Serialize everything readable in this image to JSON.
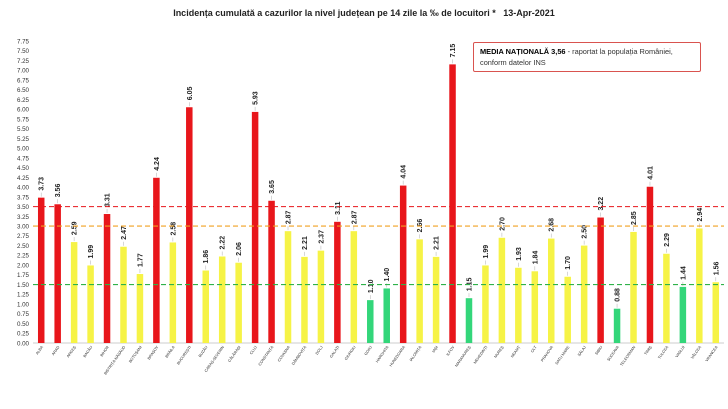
{
  "title": "Incidența cumulată a cazurilor la nivel județean pe 14 zile la ‰ de locuitori *   13-Apr-2021",
  "annotation": {
    "bold": "MEDIA NAȚIONALĂ  3,56",
    "text1": " - raportat la populația României,",
    "text2": "conform datelor INS"
  },
  "colors": {
    "red": "#e8161b",
    "yellow": "#f6f346",
    "green": "#33d67a",
    "line_red": "#e8161b",
    "line_orange": "#f0a020",
    "line_green": "#2fb24a"
  },
  "chart_data": {
    "type": "bar",
    "title": "Incidența cumulată a cazurilor la nivel județean pe 14 zile la ‰ de locuitori *   13-Apr-2021",
    "ylim": [
      0,
      7.75
    ],
    "yticks": [
      "0.00",
      "0.25",
      "0.50",
      "0.75",
      "1.00",
      "1.25",
      "1.50",
      "1.75",
      "2.00",
      "2.25",
      "2.50",
      "2.75",
      "3.00",
      "3.25",
      "3.50",
      "3.75",
      "4.00",
      "4.25",
      "4.50",
      "4.75",
      "5.00",
      "5.25",
      "5.50",
      "5.75",
      "6.00",
      "6.25",
      "6.50",
      "6.75",
      "7.00",
      "7.25",
      "7.50",
      "7.75"
    ],
    "categories": [
      "ALBA",
      "ARAD",
      "ARGEȘ",
      "BACĂU",
      "BIHOR",
      "BISTRIȚA-NĂSĂUD",
      "BOTOȘANI",
      "BRAȘOV",
      "BRĂILA",
      "BUCUREȘTI",
      "BUZĂU",
      "CARAȘ-SEVERIN",
      "CĂLĂRAȘI",
      "CLUJ",
      "CONSTANȚA",
      "COVASNA",
      "DÂMBOVIȚA",
      "DOLJ",
      "GALAȚI",
      "GIURGIU",
      "GORJ",
      "HARGHITA",
      "HUNEDOARA",
      "IALOMIȚA",
      "IAȘI",
      "ILFOV",
      "MARAMUREȘ",
      "MEHEDINȚI",
      "MUREȘ",
      "NEAMȚ",
      "OLT",
      "PRAHOVA",
      "SATU MARE",
      "SĂLAJ",
      "SIBIU",
      "SUCEAVA",
      "TELEORMAN",
      "TIMIȘ",
      "TULCEA",
      "VASLUI",
      "VÂLCEA",
      "VRANCEA"
    ],
    "values": [
      3.73,
      3.56,
      2.59,
      1.99,
      3.31,
      2.47,
      1.77,
      4.24,
      2.58,
      6.05,
      1.86,
      2.22,
      2.06,
      5.93,
      3.65,
      2.87,
      2.21,
      2.37,
      3.11,
      2.87,
      1.1,
      1.4,
      4.04,
      2.66,
      2.21,
      7.15,
      1.15,
      1.99,
      2.7,
      1.93,
      1.84,
      2.68,
      1.7,
      2.5,
      3.22,
      0.88,
      2.85,
      4.01,
      2.29,
      1.44,
      2.94,
      1.56
    ],
    "value_labels": [
      "3.73",
      "3.56",
      "2.59",
      "1.99",
      "3.31",
      "2.47",
      "1.77",
      "4.24",
      "2.58",
      "6.05",
      "1.86",
      "2.22",
      "2.06",
      "5.93",
      "3.65",
      "2.87",
      "2.21",
      "2.37",
      "3.11",
      "2.87",
      "1.10",
      "1.40",
      "4.04",
      "2.66",
      "2.21",
      "7.15",
      "1.15",
      "1.99",
      "2.70",
      "1.93",
      "1.84",
      "2.68",
      "1.70",
      "2.50",
      "3.22",
      "0.88",
      "2.85",
      "4.01",
      "2.29",
      "1.44",
      "2.94",
      "1.56"
    ],
    "bar_colors": [
      "red",
      "red",
      "yellow",
      "yellow",
      "red",
      "yellow",
      "yellow",
      "red",
      "yellow",
      "red",
      "yellow",
      "yellow",
      "yellow",
      "red",
      "red",
      "yellow",
      "yellow",
      "yellow",
      "red",
      "yellow",
      "green",
      "green",
      "red",
      "yellow",
      "yellow",
      "red",
      "green",
      "yellow",
      "yellow",
      "yellow",
      "yellow",
      "yellow",
      "yellow",
      "yellow",
      "red",
      "green",
      "yellow",
      "red",
      "yellow",
      "green",
      "yellow",
      "yellow"
    ],
    "reference_lines": [
      {
        "value": 3.5,
        "color": "line_red"
      },
      {
        "value": 3.0,
        "color": "line_orange"
      },
      {
        "value": 1.5,
        "color": "line_green"
      }
    ],
    "grid": false,
    "legend": "none"
  }
}
